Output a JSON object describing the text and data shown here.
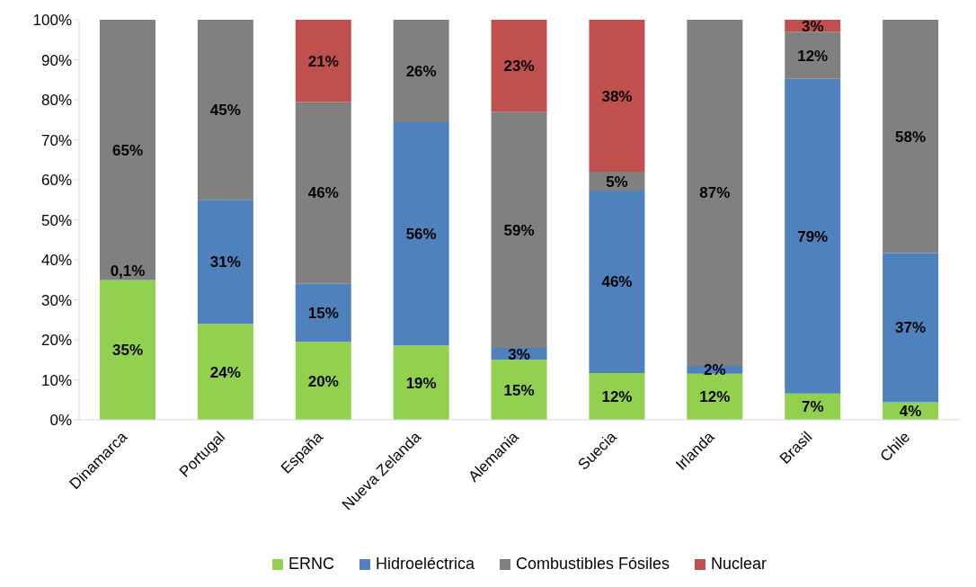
{
  "chart_data": {
    "type": "bar",
    "stacked": true,
    "categories": [
      "Dinamarca",
      "Portugal",
      "España",
      "Nueva Zelanda",
      "Alemania",
      "Suecia",
      "Irlanda",
      "Brasil",
      "Chile"
    ],
    "series": [
      {
        "name": "ERNC",
        "color": "#92d050",
        "values": [
          34.9,
          24,
          19.5,
          18.6,
          15,
          11.7,
          11.5,
          6.6,
          4.4
        ],
        "value_labels": [
          "35%",
          "24%",
          "20%",
          "19%",
          "15%",
          "12%",
          "12%",
          "7%",
          "4%"
        ]
      },
      {
        "name": "Hidroeléctrica",
        "color": "#4f81bd",
        "values": [
          0.1,
          31,
          14.5,
          55.8,
          3,
          45.6,
          2,
          78.6,
          37.3
        ],
        "value_labels": [
          "0,1%",
          "31%",
          "15%",
          "56%",
          "3%",
          "46%",
          "2%",
          "79%",
          "37%"
        ]
      },
      {
        "name": "Combustibles Fósiles",
        "color": "#808080",
        "values": [
          65,
          45,
          45.5,
          25.6,
          59,
          4.7,
          86.5,
          11.8,
          58.3
        ],
        "value_labels": [
          "65%",
          "45%",
          "46%",
          "26%",
          "59%",
          "5%",
          "87%",
          "12%",
          "58%"
        ]
      },
      {
        "name": "Nuclear",
        "color": "#c0504d",
        "values": [
          null,
          null,
          20.5,
          null,
          23,
          38,
          null,
          3,
          null
        ],
        "value_labels": [
          null,
          null,
          "21%",
          null,
          "23%",
          "38%",
          null,
          "3%",
          null
        ]
      }
    ],
    "ylim": [
      0,
      100
    ],
    "yticks": [
      {
        "value": 0,
        "label": "0%"
      },
      {
        "value": 10,
        "label": "10%"
      },
      {
        "value": 20,
        "label": "20%"
      },
      {
        "value": 30,
        "label": "30%"
      },
      {
        "value": 40,
        "label": "40%"
      },
      {
        "value": 50,
        "label": "50%"
      },
      {
        "value": 60,
        "label": "60%"
      },
      {
        "value": 70,
        "label": "70%"
      },
      {
        "value": 80,
        "label": "80%"
      },
      {
        "value": 90,
        "label": "90%"
      },
      {
        "value": 100,
        "label": "100%"
      }
    ],
    "legend": "bottom"
  }
}
